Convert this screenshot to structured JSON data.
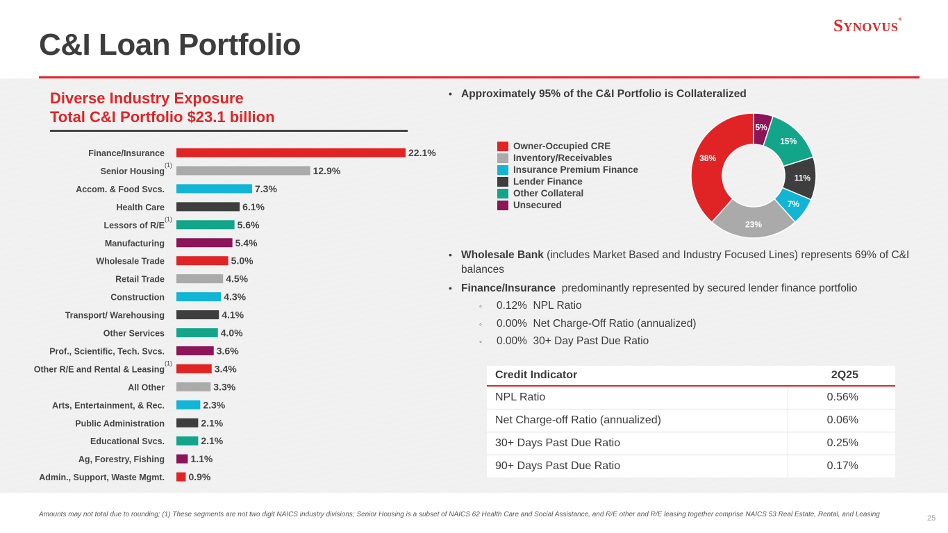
{
  "header": {
    "title": "C&I Loan Portfolio",
    "logo_text": "Synovus",
    "logo_mark": "®"
  },
  "subtitle": {
    "line1": "Diverse Industry Exposure",
    "line2": "Total C&I Portfolio $23.1 billion"
  },
  "colors": {
    "red": "#e02426",
    "gray": "#aaaaaa",
    "cyan": "#12b5d6",
    "dark": "#3e3e3e",
    "teal": "#12a58a",
    "maroon": "#8c1458"
  },
  "chart_data": [
    {
      "type": "bar",
      "orientation": "horizontal",
      "title": "Diverse Industry Exposure",
      "unit": "%",
      "categories": [
        "Finance/Insurance",
        "Senior Housing",
        "Accom. & Food Svcs.",
        "Health Care",
        "Lessors of R/E",
        "Manufacturing",
        "Wholesale Trade",
        "Retail Trade",
        "Construction",
        "Transport/ Warehousing",
        "Other Services",
        "Prof., Scientific, Tech. Svcs.",
        "Other R/E and Rental & Leasing",
        "All Other",
        "Arts, Entertainment, & Rec.",
        "Public Administration",
        "Educational Svcs.",
        "Ag, Forestry, Fishing",
        "Admin., Support, Waste Mgmt."
      ],
      "values": [
        22.1,
        12.9,
        7.3,
        6.1,
        5.6,
        5.4,
        5.0,
        4.5,
        4.3,
        4.1,
        4.0,
        3.6,
        3.4,
        3.3,
        2.3,
        2.1,
        2.1,
        1.1,
        0.9
      ],
      "value_labels": [
        "22.1%",
        "12.9%",
        "7.3%",
        "6.1%",
        "5.6%",
        "5.4%",
        "5.0%",
        "4.5%",
        "4.3%",
        "4.1%",
        "4.0%",
        "3.6%",
        "3.4%",
        "3.3%",
        "2.3%",
        "2.1%",
        "2.1%",
        "1.1%",
        "0.9%"
      ],
      "colors": [
        "red",
        "gray",
        "cyan",
        "dark",
        "teal",
        "maroon",
        "red",
        "gray",
        "cyan",
        "dark",
        "teal",
        "maroon",
        "red",
        "gray",
        "cyan",
        "dark",
        "teal",
        "maroon",
        "red"
      ],
      "footnote_marks": [
        "",
        "(1)",
        "",
        "",
        "(1)",
        "",
        "",
        "",
        "",
        "",
        "",
        "",
        "(1)",
        "",
        "",
        "",
        "",
        "",
        ""
      ],
      "xlim": [
        0,
        23
      ]
    },
    {
      "type": "pie",
      "style": "donut",
      "labels": [
        "Unsecured",
        "Other Collateral",
        "Lender Finance",
        "Insurance Premium Finance",
        "Inventory/Receivables",
        "Owner-Occupied CRE"
      ],
      "values": [
        5,
        15,
        11,
        7,
        23,
        38
      ],
      "value_labels": [
        "5%",
        "15%",
        "11%",
        "7%",
        "23%",
        "38%"
      ],
      "colors": [
        "maroon",
        "teal",
        "dark",
        "cyan",
        "gray",
        "red"
      ]
    }
  ],
  "legend": [
    {
      "label": "Owner-Occupied CRE",
      "color": "#e02426"
    },
    {
      "label": "Inventory/Receivables",
      "color": "#aaaaaa"
    },
    {
      "label": "Insurance Premium Finance",
      "color": "#12b5d6"
    },
    {
      "label": "Lender Finance",
      "color": "#3e3e3e"
    },
    {
      "label": "Other Collateral",
      "color": "#12a58a"
    },
    {
      "label": "Unsecured",
      "color": "#8c1458"
    }
  ],
  "bullets": {
    "collateral": "Approximately 95% of the C&I Portfolio is Collateralized",
    "wholesale_bold": "Wholesale Bank",
    "wholesale_text": " (includes Market Based and Industry Focused Lines) represents 69% of C&I balances",
    "finance_bold": "Finance/Insurance",
    "finance_text": "  predominantly represented by secured lender finance portfolio",
    "dot": "•",
    "sub_marker": "◦",
    "sub": [
      "0.12%  NPL Ratio",
      "0.00%  Net Charge-Off Ratio (annualized)",
      "0.00%  30+ Day Past Due Ratio"
    ]
  },
  "table": {
    "header": [
      "Credit Indicator",
      "2Q25"
    ],
    "rows": [
      [
        "NPL Ratio",
        "0.56%"
      ],
      [
        "Net Charge-off Ratio (annualized)",
        "0.06%"
      ],
      [
        "30+ Days Past Due Ratio",
        "0.25%"
      ],
      [
        "90+ Days Past Due Ratio",
        "0.17%"
      ]
    ]
  },
  "footnote": "Amounts may not total due to rounding; (1) These segments are not two digit NAICS industry divisions; Senior Housing is a subset of NAICS 62 Health Care and Social Assistance, and R/E other and R/E leasing together comprise NAICS 53 Real Estate, Rental, and Leasing",
  "page_number": "25"
}
